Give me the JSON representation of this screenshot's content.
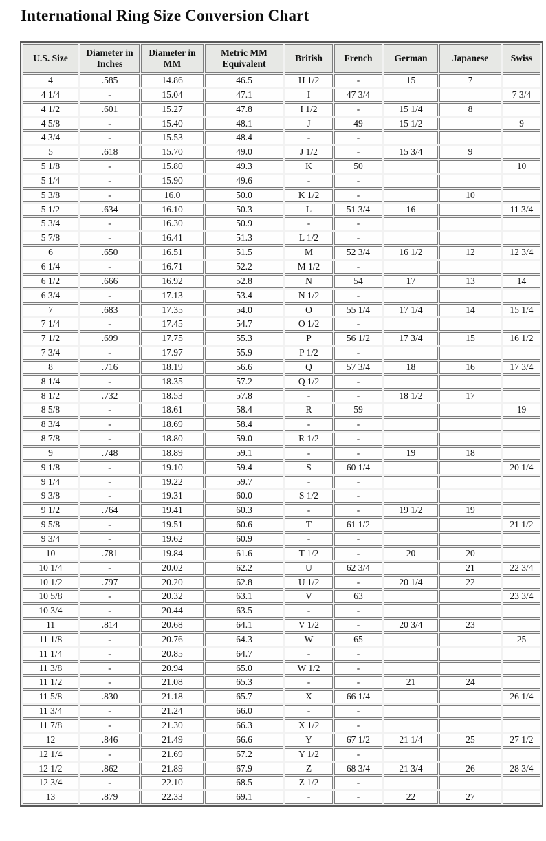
{
  "title": "International Ring Size Conversion Chart",
  "colors": {
    "header_bg": "#e7e8e5",
    "cell_bg": "#fefefe",
    "border": "#7d7d7d",
    "outer_border": "#585858",
    "text": "#131313"
  },
  "table": {
    "columns": [
      "U.S. Size",
      "Diameter in Inches",
      "Diameter in MM",
      "Metric MM Equivalent",
      "British",
      "French",
      "German",
      "Japanese",
      "Swiss"
    ],
    "rows": [
      [
        "4",
        ".585",
        "14.86",
        "46.5",
        "H 1/2",
        "-",
        "15",
        "7",
        ""
      ],
      [
        "4 1/4",
        "-",
        "15.04",
        "47.1",
        "I",
        "47 3/4",
        "",
        "",
        "7 3/4"
      ],
      [
        "4 1/2",
        ".601",
        "15.27",
        "47.8",
        "I 1/2",
        "-",
        "15 1/4",
        "8",
        ""
      ],
      [
        "4 5/8",
        "-",
        "15.40",
        "48.1",
        "J",
        "49",
        "15 1/2",
        "",
        "9"
      ],
      [
        "4 3/4",
        "-",
        "15.53",
        "48.4",
        "-",
        "-",
        "",
        "",
        ""
      ],
      [
        "5",
        ".618",
        "15.70",
        "49.0",
        "J 1/2",
        "-",
        "15 3/4",
        "9",
        ""
      ],
      [
        "5 1/8",
        "-",
        "15.80",
        "49.3",
        "K",
        "50",
        "",
        "",
        "10"
      ],
      [
        "5 1/4",
        "-",
        "15.90",
        "49.6",
        "-",
        "-",
        "",
        "",
        ""
      ],
      [
        "5 3/8",
        "-",
        "16.0",
        "50.0",
        "K 1/2",
        "-",
        "",
        "10",
        ""
      ],
      [
        "5 1/2",
        ".634",
        "16.10",
        "50.3",
        "L",
        "51 3/4",
        "16",
        "",
        "11 3/4"
      ],
      [
        "5 3/4",
        "-",
        "16.30",
        "50.9",
        "-",
        "-",
        "",
        "",
        ""
      ],
      [
        "5 7/8",
        "-",
        "16.41",
        "51.3",
        "L 1/2",
        "-",
        "",
        "",
        ""
      ],
      [
        "6",
        ".650",
        "16.51",
        "51.5",
        "M",
        "52 3/4",
        "16 1/2",
        "12",
        "12 3/4"
      ],
      [
        "6 1/4",
        "-",
        "16.71",
        "52.2",
        "M 1/2",
        "-",
        "",
        "",
        ""
      ],
      [
        "6 1/2",
        ".666",
        "16.92",
        "52.8",
        "N",
        "54",
        "17",
        "13",
        "14"
      ],
      [
        "6 3/4",
        "-",
        "17.13",
        "53.4",
        "N 1/2",
        "-",
        "",
        "",
        ""
      ],
      [
        "7",
        ".683",
        "17.35",
        "54.0",
        "O",
        "55 1/4",
        "17 1/4",
        "14",
        "15 1/4"
      ],
      [
        "7 1/4",
        "-",
        "17.45",
        "54.7",
        "O 1/2",
        "-",
        "",
        "",
        ""
      ],
      [
        "7 1/2",
        ".699",
        "17.75",
        "55.3",
        "P",
        "56 1/2",
        "17 3/4",
        "15",
        "16 1/2"
      ],
      [
        "7 3/4",
        "-",
        "17.97",
        "55.9",
        "P 1/2",
        "-",
        "",
        "",
        ""
      ],
      [
        "8",
        ".716",
        "18.19",
        "56.6",
        "Q",
        "57 3/4",
        "18",
        "16",
        "17 3/4"
      ],
      [
        "8 1/4",
        "-",
        "18.35",
        "57.2",
        "Q 1/2",
        "-",
        "",
        "",
        ""
      ],
      [
        "8 1/2",
        ".732",
        "18.53",
        "57.8",
        "-",
        "-",
        "18 1/2",
        "17",
        ""
      ],
      [
        "8 5/8",
        "-",
        "18.61",
        "58.4",
        "R",
        "59",
        "",
        "",
        "19"
      ],
      [
        "8 3/4",
        "-",
        "18.69",
        "58.4",
        "-",
        "-",
        "",
        "",
        ""
      ],
      [
        "8 7/8",
        "-",
        "18.80",
        "59.0",
        "R 1/2",
        "-",
        "",
        "",
        ""
      ],
      [
        "9",
        ".748",
        "18.89",
        "59.1",
        "-",
        "-",
        "19",
        "18",
        ""
      ],
      [
        "9 1/8",
        "-",
        "19.10",
        "59.4",
        "S",
        "60 1/4",
        "",
        "",
        "20 1/4"
      ],
      [
        "9 1/4",
        "-",
        "19.22",
        "59.7",
        "-",
        "-",
        "",
        "",
        ""
      ],
      [
        "9 3/8",
        "-",
        "19.31",
        "60.0",
        "S 1/2",
        "-",
        "",
        "",
        ""
      ],
      [
        "9 1/2",
        ".764",
        "19.41",
        "60.3",
        "-",
        "-",
        "19 1/2",
        "19",
        ""
      ],
      [
        "9 5/8",
        "-",
        "19.51",
        "60.6",
        "T",
        "61 1/2",
        "",
        "",
        "21 1/2"
      ],
      [
        "9 3/4",
        "-",
        "19.62",
        "60.9",
        "-",
        "-",
        "",
        "",
        ""
      ],
      [
        "10",
        ".781",
        "19.84",
        "61.6",
        "T 1/2",
        "-",
        "20",
        "20",
        ""
      ],
      [
        "10 1/4",
        "-",
        "20.02",
        "62.2",
        "U",
        "62 3/4",
        "",
        "21",
        "22 3/4"
      ],
      [
        "10 1/2",
        ".797",
        "20.20",
        "62.8",
        "U 1/2",
        "-",
        "20 1/4",
        "22",
        ""
      ],
      [
        "10 5/8",
        "-",
        "20.32",
        "63.1",
        "V",
        "63",
        "",
        "",
        "23 3/4"
      ],
      [
        "10 3/4",
        "-",
        "20.44",
        "63.5",
        "-",
        "-",
        "",
        "",
        ""
      ],
      [
        "11",
        ".814",
        "20.68",
        "64.1",
        "V 1/2",
        "-",
        "20 3/4",
        "23",
        ""
      ],
      [
        "11 1/8",
        "-",
        "20.76",
        "64.3",
        "W",
        "65",
        "",
        "",
        "25"
      ],
      [
        "11 1/4",
        "-",
        "20.85",
        "64.7",
        "-",
        "-",
        "",
        "",
        ""
      ],
      [
        "11 3/8",
        "-",
        "20.94",
        "65.0",
        "W 1/2",
        "-",
        "",
        "",
        ""
      ],
      [
        "11 1/2",
        "-",
        "21.08",
        "65.3",
        "-",
        "-",
        "21",
        "24",
        ""
      ],
      [
        "11 5/8",
        ".830",
        "21.18",
        "65.7",
        "X",
        "66 1/4",
        "",
        "",
        "26 1/4"
      ],
      [
        "11 3/4",
        "-",
        "21.24",
        "66.0",
        "-",
        "-",
        "",
        "",
        ""
      ],
      [
        "11 7/8",
        "-",
        "21.30",
        "66.3",
        "X 1/2",
        "-",
        "",
        "",
        ""
      ],
      [
        "12",
        ".846",
        "21.49",
        "66.6",
        "Y",
        "67 1/2",
        "21 1/4",
        "25",
        "27 1/2"
      ],
      [
        "12 1/4",
        "-",
        "21.69",
        "67.2",
        "Y 1/2",
        "-",
        "",
        "",
        ""
      ],
      [
        "12 1/2",
        ".862",
        "21.89",
        "67.9",
        "Z",
        "68 3/4",
        "21 3/4",
        "26",
        "28 3/4"
      ],
      [
        "12 3/4",
        "-",
        "22.10",
        "68.5",
        "Z 1/2",
        "-",
        "",
        "",
        ""
      ],
      [
        "13",
        ".879",
        "22.33",
        "69.1",
        "-",
        "-",
        "22",
        "27",
        ""
      ]
    ]
  }
}
